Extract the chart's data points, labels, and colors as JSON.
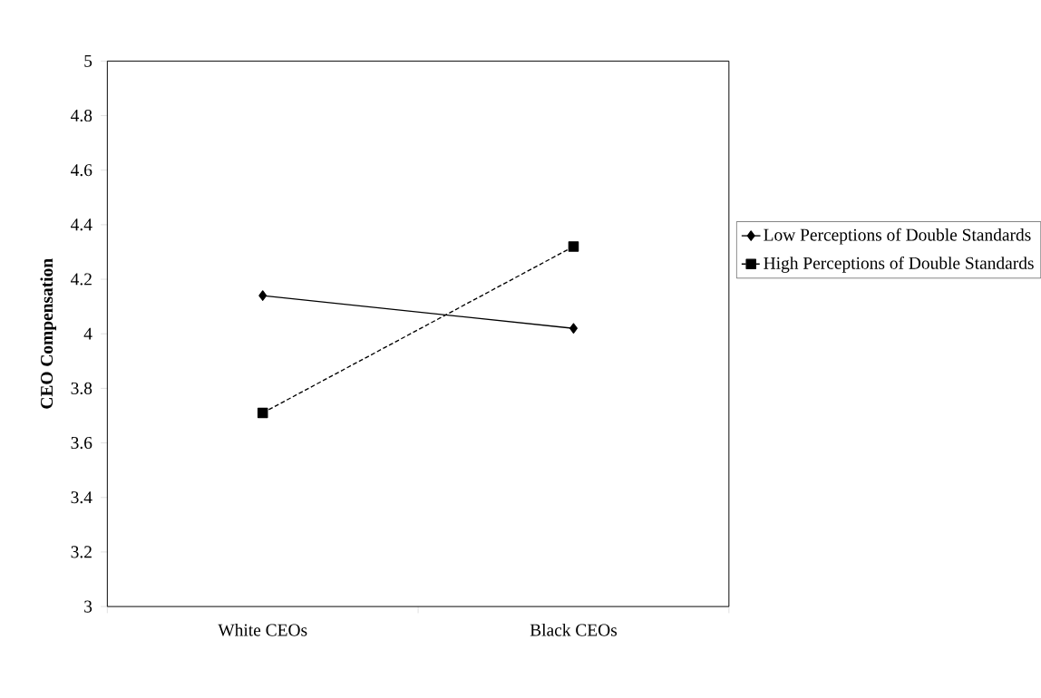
{
  "chart_data": {
    "type": "line",
    "ylabel": "CEO Compensation",
    "categories": [
      "White CEOs",
      "Black CEOs"
    ],
    "ylim": [
      3,
      5
    ],
    "yticks": [
      3,
      3.2,
      3.4,
      3.6,
      3.8,
      4,
      4.2,
      4.4,
      4.6,
      4.8,
      5
    ],
    "legend": "right",
    "series": [
      {
        "name": "Low Perceptions of Double Standards",
        "color": "#000000",
        "values": [
          4.14,
          4.02
        ],
        "marker": "diamond",
        "line_style": "solid"
      },
      {
        "name": "High Perceptions of Double Standards",
        "color": "#000000",
        "values": [
          3.71,
          4.32
        ],
        "marker": "square",
        "line_style": "dashed"
      }
    ]
  }
}
